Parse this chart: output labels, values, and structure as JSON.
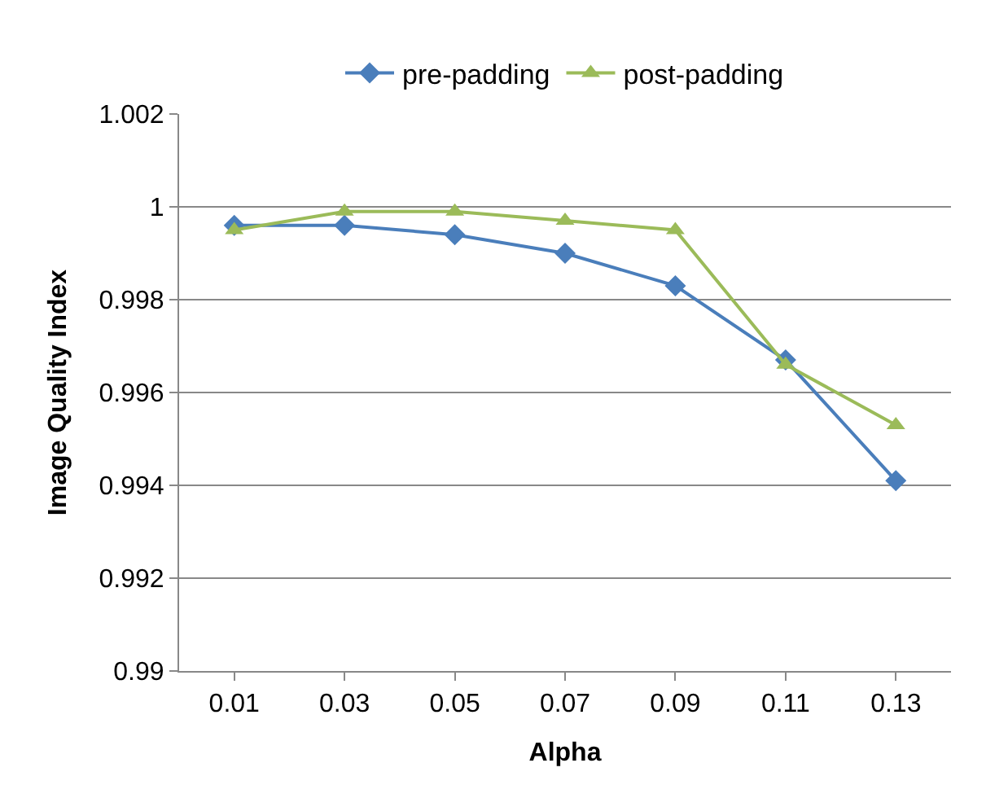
{
  "chart_data": {
    "type": "line",
    "xlabel": "Alpha",
    "ylabel": "Image Quality Index",
    "categories": [
      "0.01",
      "0.03",
      "0.05",
      "0.07",
      "0.09",
      "0.11",
      "0.13"
    ],
    "series": [
      {
        "name": "pre-padding",
        "color": "#4a7ebb",
        "marker": "diamond",
        "values": [
          0.9996,
          0.9996,
          0.9994,
          0.999,
          0.9983,
          0.9967,
          0.9941
        ]
      },
      {
        "name": "post-padding",
        "color": "#9bbb59",
        "marker": "triangle",
        "values": [
          0.9995,
          0.9999,
          0.9999,
          0.9997,
          0.9995,
          0.9966,
          0.9953
        ]
      }
    ],
    "ylim": [
      0.99,
      1.002
    ],
    "yticks": [
      0.99,
      0.992,
      0.994,
      0.996,
      0.998,
      1,
      1.002
    ],
    "grid": "y",
    "legend": "top"
  }
}
